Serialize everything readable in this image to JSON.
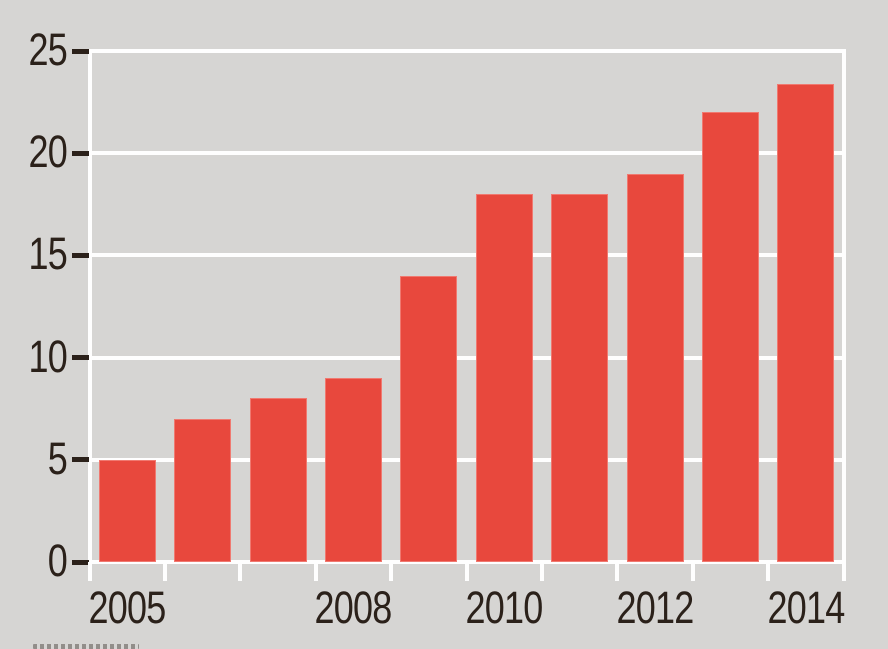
{
  "chart_data": {
    "type": "bar",
    "title": "",
    "xlabel": "",
    "ylabel": "",
    "categories": [
      "2005",
      "2006",
      "2007",
      "2008",
      "2009",
      "2010",
      "2011",
      "2012",
      "2013",
      "2014"
    ],
    "values": [
      5,
      7,
      8,
      9,
      14,
      18,
      18,
      19,
      22,
      23.4
    ],
    "ylim": [
      0,
      25
    ],
    "yticks": [
      0,
      5,
      10,
      15,
      20,
      25
    ],
    "x_axis_labels_visible": [
      "2005",
      "2008",
      "2010",
      "2012",
      "2014"
    ],
    "legend": "none",
    "grid": "horizontal-white-gridlines"
  },
  "colors": {
    "background": "#d6d5d3",
    "bar": "#e8483d",
    "gridline": "#fefefe",
    "axis_tick_dark": "#2b211a",
    "label_text": "#2b211a"
  },
  "caption_fragment": {
    "note": "top edge of cropped small text at bottom-left"
  }
}
